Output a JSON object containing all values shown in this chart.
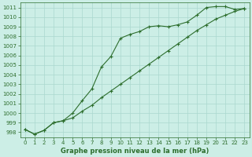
{
  "title": "Graphe pression niveau de la mer (hPa)",
  "bg_color": "#cceee6",
  "line_color": "#2d6e2d",
  "grid_color": "#aad8ce",
  "text_color": "#2d6e2d",
  "xlim": [
    -0.5,
    23.5
  ],
  "ylim": [
    997.5,
    1011.5
  ],
  "yticks": [
    998,
    999,
    1000,
    1001,
    1002,
    1003,
    1004,
    1005,
    1006,
    1007,
    1008,
    1009,
    1010,
    1011
  ],
  "xticks": [
    0,
    1,
    2,
    3,
    4,
    5,
    6,
    7,
    8,
    9,
    10,
    11,
    12,
    13,
    14,
    15,
    16,
    17,
    18,
    19,
    20,
    21,
    22,
    23
  ],
  "series1_x": [
    0,
    1,
    2,
    3,
    4,
    5,
    6,
    7,
    8,
    9,
    10,
    11,
    12,
    13,
    14,
    15,
    16,
    17,
    18,
    19,
    20,
    21,
    22,
    23
  ],
  "series1_y": [
    998.3,
    997.8,
    998.2,
    999.0,
    999.2,
    1000.0,
    1001.3,
    1002.5,
    1004.8,
    1005.9,
    1007.8,
    1008.2,
    1008.5,
    1009.0,
    1009.1,
    1009.0,
    1009.2,
    1009.5,
    1010.2,
    1011.0,
    1011.1,
    1011.1,
    1010.8,
    1010.9
  ],
  "series2_x": [
    0,
    1,
    2,
    3,
    4,
    5,
    6,
    7,
    8,
    9,
    10,
    11,
    12,
    13,
    14,
    15,
    16,
    17,
    18,
    19,
    20,
    21,
    22,
    23
  ],
  "series2_y": [
    998.3,
    997.8,
    998.2,
    999.0,
    999.2,
    999.5,
    1000.2,
    1000.8,
    1001.6,
    1002.3,
    1003.0,
    1003.7,
    1004.4,
    1005.1,
    1005.8,
    1006.5,
    1007.2,
    1007.9,
    1008.6,
    1009.2,
    1009.8,
    1010.2,
    1010.6,
    1010.9
  ],
  "title_fontsize": 6,
  "tick_fontsize": 5
}
